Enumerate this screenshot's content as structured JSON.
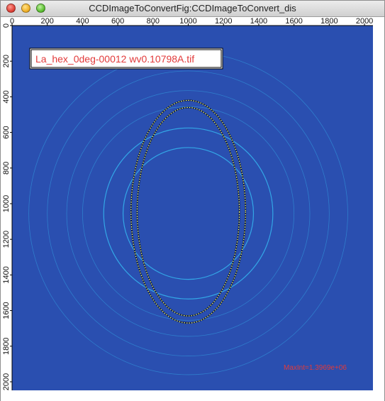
{
  "window": {
    "title": "CCDImageToConvertFig:CCDImageToConvert_dis"
  },
  "plot": {
    "image_label": "La_hex_0deg-00012 wv0.10798A.tif",
    "max_intensity_label": "MaxInt=1.3969e+06",
    "x_ticks": [
      "0",
      "200",
      "400",
      "600",
      "800",
      "1000",
      "1200",
      "1400",
      "1600",
      "1800",
      "2000"
    ],
    "y_ticks": [
      "0",
      "200",
      "400",
      "600",
      "800",
      "1000",
      "1200",
      "1400",
      "1600",
      "1800",
      "2000"
    ],
    "x_range": [
      0,
      2048
    ],
    "y_range": [
      0,
      2048
    ],
    "colors": {
      "background": "#2a4fb0",
      "ring": "#35b6f0",
      "ellipse_marker": "#ffff66",
      "label_text": "#e23a3a",
      "max_int_text": "#e23a3a"
    },
    "rings": [
      {
        "cx": 1000,
        "cy": 1055,
        "r": 370
      },
      {
        "cx": 1000,
        "cy": 1055,
        "r": 480
      },
      {
        "cx": 1000,
        "cy": 1055,
        "r": 600
      },
      {
        "cx": 1000,
        "cy": 1055,
        "r": 690
      },
      {
        "cx": 1000,
        "cy": 1055,
        "r": 800
      },
      {
        "cx": 1000,
        "cy": 1055,
        "r": 905
      }
    ],
    "ellipses": [
      {
        "cx": 1000,
        "cy": 1045,
        "rx": 290,
        "ry": 585
      },
      {
        "cx": 1000,
        "cy": 1045,
        "rx": 325,
        "ry": 625
      }
    ]
  }
}
